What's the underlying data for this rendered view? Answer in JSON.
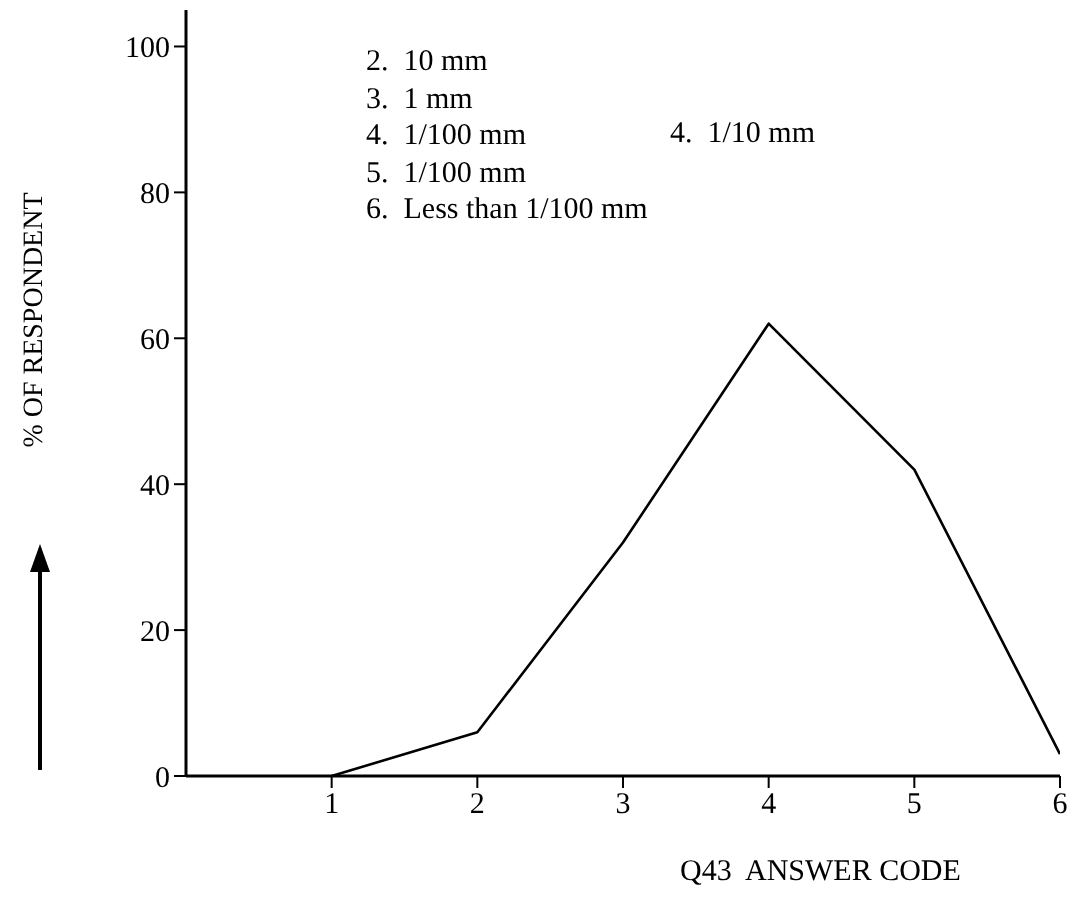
{
  "chart_data": {
    "type": "line",
    "annotations": [
      "2.  10 mm",
      "3.  1 mm",
      "4.  1/100 mm",
      "5.  1/100 mm",
      "6.  Less than 1/100 mm",
      "4.  1/10 mm"
    ],
    "xlabel": "Q43  ANSWER CODE",
    "ylabel": "% OF RESPONDENT",
    "x": [
      1,
      2,
      3,
      4,
      5,
      6
    ],
    "series": [
      {
        "color": "#000000",
        "values": [
          0,
          6,
          32,
          62,
          42,
          3
        ]
      }
    ],
    "xlim": [
      0,
      6
    ],
    "xticks": [
      1,
      2,
      3,
      4,
      5,
      6
    ],
    "ylim": [
      0,
      105
    ],
    "yticks": [
      0,
      20,
      40,
      60,
      80,
      100
    ],
    "marker": "none",
    "line_style": "solid",
    "grid": false,
    "legend": false
  }
}
